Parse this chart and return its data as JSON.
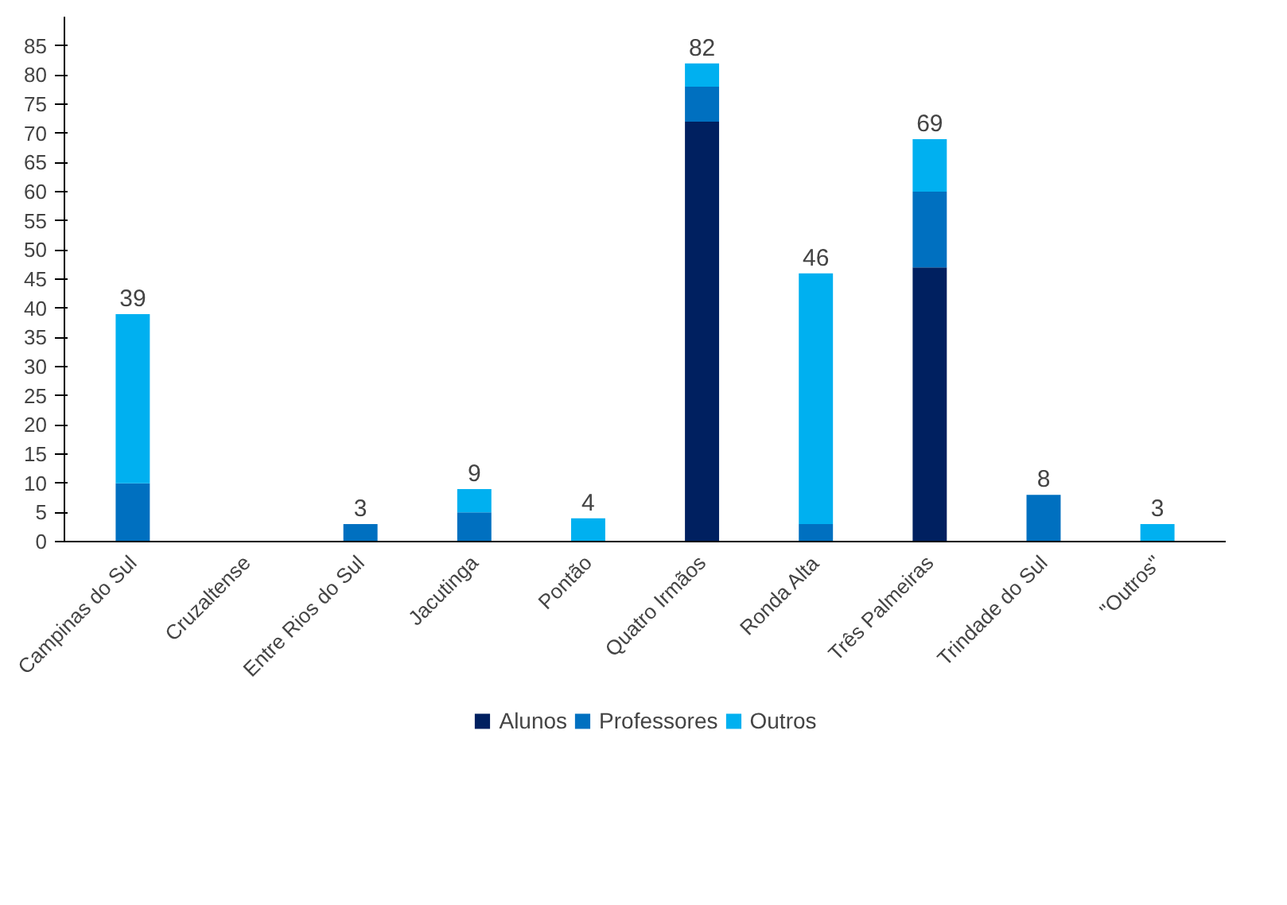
{
  "chart_data": {
    "type": "bar",
    "stacked": true,
    "categories": [
      "Campinas do Sul",
      "Cruzaltense",
      "Entre Rios do Sul",
      "Jacutinga",
      "Pontão",
      "Quatro Irmãos",
      "Ronda Alta",
      "Três Palmeiras",
      "Trindade do Sul",
      "\"Outros\""
    ],
    "series": [
      {
        "name": "Alunos",
        "color": "#002060",
        "values": [
          0,
          0,
          0,
          0,
          0,
          72,
          0,
          47,
          0,
          0
        ]
      },
      {
        "name": "Professores",
        "color": "#0070c0",
        "values": [
          10,
          0,
          3,
          5,
          0,
          6,
          3,
          13,
          8,
          0
        ]
      },
      {
        "name": "Outros",
        "color": "#00b0f0",
        "values": [
          29,
          0,
          0,
          4,
          4,
          4,
          43,
          9,
          0,
          3
        ]
      }
    ],
    "totals": [
      "39",
      null,
      "3",
      "9",
      "4",
      "82",
      "46",
      "69",
      "8",
      "3"
    ],
    "ylim": [
      0,
      90
    ],
    "yticks": [
      0,
      5,
      10,
      15,
      20,
      25,
      30,
      35,
      40,
      45,
      50,
      55,
      60,
      65,
      70,
      75,
      80,
      85
    ],
    "grid": false,
    "legend": "bottom"
  }
}
